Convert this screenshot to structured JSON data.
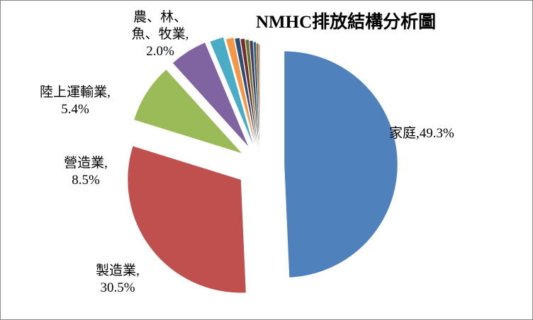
{
  "chart_data": {
    "type": "pie",
    "title": "NMHC排放結構分析圖",
    "categories": [
      "家庭",
      "製造業",
      "營造業",
      "陸上運輸業",
      "農、林、魚、牧業",
      null,
      null,
      null,
      null,
      null,
      null,
      null,
      null
    ],
    "values": [
      49.3,
      30.5,
      8.5,
      5.4,
      2.0,
      1.1,
      0.7,
      0.6,
      0.5,
      0.5,
      0.4,
      0.3,
      0.2
    ],
    "value_labels": [
      "49.3%",
      "30.5%",
      "8.5%",
      "5.4%",
      "2.0%",
      null,
      null,
      null,
      null,
      null,
      null,
      null,
      null
    ],
    "colors": [
      "#4f81bd",
      "#c0504d",
      "#9bbb59",
      "#8064a2",
      "#4bacc6",
      "#f79646",
      "#2c4d75",
      "#772c2a",
      "#5f7530",
      "#4d3b62",
      "#276a7c",
      "#b65708",
      "#729aca"
    ]
  }
}
